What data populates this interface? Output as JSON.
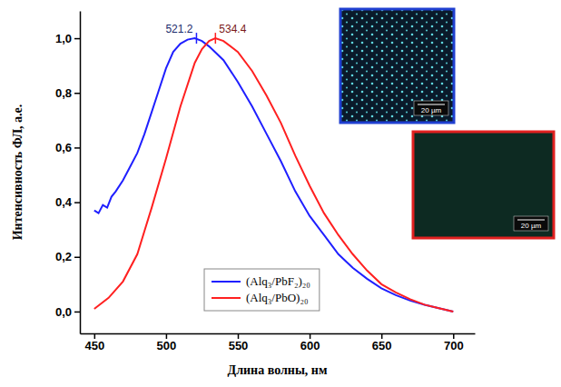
{
  "chart_data": {
    "type": "line",
    "x_label": "Длина волны, нм",
    "y_label": "Интенсивность ФЛ, а.е.",
    "xlim": [
      440,
      715
    ],
    "xticks": [
      450,
      500,
      550,
      600,
      650,
      700
    ],
    "ylim": [
      -0.08,
      1.1
    ],
    "yticks": [
      {
        "value": 0,
        "label": "0,0"
      },
      {
        "value": 0.2,
        "label": "0,2"
      },
      {
        "value": 0.4,
        "label": "0,4"
      },
      {
        "value": 0.6,
        "label": "0,6"
      },
      {
        "value": 0.8,
        "label": "0,8"
      },
      {
        "value": 1.0,
        "label": "1,0"
      }
    ],
    "grid": false,
    "legend": "center",
    "series": [
      {
        "name": "(Alq₃/PbF₂)₂₀",
        "color": "#1f1fff",
        "x": [
          450,
          453,
          456,
          459,
          462,
          465,
          470,
          475,
          480,
          485,
          490,
          495,
          500,
          505,
          510,
          515,
          520,
          525,
          530,
          540,
          550,
          560,
          570,
          580,
          590,
          600,
          610,
          620,
          630,
          640,
          650,
          660,
          670,
          680,
          690,
          700
        ],
        "values": [
          0.37,
          0.36,
          0.39,
          0.38,
          0.42,
          0.44,
          0.48,
          0.53,
          0.58,
          0.65,
          0.73,
          0.81,
          0.89,
          0.95,
          0.98,
          0.995,
          1.0,
          0.99,
          0.97,
          0.92,
          0.84,
          0.75,
          0.65,
          0.55,
          0.44,
          0.35,
          0.28,
          0.21,
          0.16,
          0.12,
          0.085,
          0.06,
          0.04,
          0.025,
          0.012,
          0.0
        ]
      },
      {
        "name": "(Alq₃/PbO)₂₀",
        "color": "#ff2020",
        "x": [
          450,
          460,
          470,
          480,
          490,
          500,
          510,
          520,
          525,
          530,
          534.4,
          540,
          550,
          560,
          570,
          580,
          590,
          600,
          610,
          620,
          630,
          640,
          650,
          660,
          670,
          680,
          690,
          700
        ],
        "values": [
          0.01,
          0.05,
          0.11,
          0.21,
          0.38,
          0.56,
          0.75,
          0.91,
          0.96,
          0.99,
          1.0,
          0.99,
          0.95,
          0.88,
          0.79,
          0.69,
          0.57,
          0.46,
          0.36,
          0.28,
          0.21,
          0.15,
          0.1,
          0.07,
          0.045,
          0.025,
          0.012,
          0.0
        ]
      }
    ],
    "annotations": [
      {
        "text": "521.2",
        "x": 521.2,
        "y": 1.0,
        "color": "#1a2a6c"
      },
      {
        "text": "534.4",
        "x": 534.4,
        "y": 1.0,
        "color": "#7a1a1a"
      }
    ],
    "insets": [
      {
        "color": "#1f3fd0",
        "label": "20 µm"
      },
      {
        "color": "#e02020",
        "label": "20 µm"
      }
    ]
  }
}
